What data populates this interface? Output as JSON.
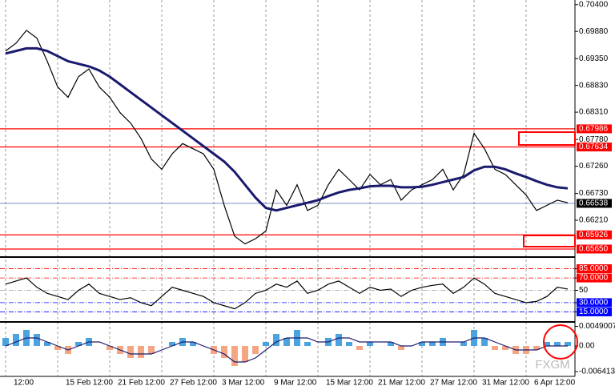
{
  "chart_data": [
    {
      "type": "line",
      "categories": [
        "12:00",
        null,
        null,
        null,
        null,
        "15 Feb 12:00",
        null,
        null,
        null,
        null,
        "21 Feb 12:00",
        null,
        null,
        null,
        null,
        "27 Feb 12:00",
        null,
        null,
        null,
        null,
        "3 Mar 12:00",
        null,
        null,
        null,
        null,
        "9 Mar 12:00",
        null,
        null,
        null,
        null,
        "15 Mar 12:00",
        null,
        null,
        null,
        null,
        "21 Mar 12:00",
        null,
        null,
        null,
        null,
        "27 Mar 12:00",
        null,
        null,
        null,
        null,
        "31 Mar 12:00",
        null,
        null,
        null,
        null,
        "6 Apr 12:00",
        null,
        null,
        null,
        null
      ],
      "series": [
        {
          "color": "#000000",
          "values": [
            0.695,
            0.6965,
            0.699,
            0.6975,
            0.693,
            0.688,
            0.686,
            0.69,
            0.6915,
            0.688,
            0.686,
            0.683,
            0.681,
            0.678,
            0.674,
            0.672,
            0.675,
            0.677,
            0.676,
            0.675,
            0.672,
            0.665,
            0.659,
            0.6575,
            0.6585,
            0.66,
            0.668,
            0.665,
            0.669,
            0.664,
            0.665,
            0.669,
            0.672,
            0.67,
            0.668,
            0.671,
            0.669,
            0.67,
            0.666,
            0.668,
            0.669,
            0.67,
            0.672,
            0.668,
            0.671,
            0.679,
            0.676,
            0.672,
            0.671,
            0.669,
            0.667,
            0.664,
            0.665,
            0.666,
            0.6655
          ]
        },
        {
          "color": "#1a1a6e",
          "values": [
            0.6945,
            0.695,
            0.6955,
            0.6955,
            0.695,
            0.694,
            0.693,
            0.6925,
            0.692,
            0.6912,
            0.69,
            0.6885,
            0.687,
            0.6855,
            0.684,
            0.6825,
            0.681,
            0.6795,
            0.678,
            0.6765,
            0.675,
            0.6735,
            0.6715,
            0.669,
            0.6665,
            0.6645,
            0.664,
            0.6645,
            0.665,
            0.6655,
            0.666,
            0.6668,
            0.6675,
            0.668,
            0.6683,
            0.6687,
            0.6688,
            0.6688,
            0.6685,
            0.6685,
            0.6686,
            0.669,
            0.6695,
            0.67,
            0.6705,
            0.6718,
            0.6725,
            0.6725,
            0.672,
            0.6712,
            0.6705,
            0.6697,
            0.669,
            0.6685,
            0.6683
          ]
        }
      ],
      "ylim": [
        0.6551,
        0.7049
      ],
      "yticks": [
        {
          "value": 0.704,
          "label": "0.70400"
        },
        {
          "value": 0.6988,
          "label": "0.69880"
        },
        {
          "value": 0.6935,
          "label": "0.69350"
        },
        {
          "value": 0.6883,
          "label": "0.68830"
        },
        {
          "value": 0.6831,
          "label": "0.68310"
        },
        {
          "value": 0.6778,
          "label": "0.67780"
        },
        {
          "value": 0.6726,
          "label": "0.67260"
        },
        {
          "value": 0.6673,
          "label": "0.66730"
        },
        {
          "value": 0.6621,
          "label": "0.66210"
        }
      ],
      "levels": [
        {
          "value": 0.67986,
          "label": "0.67986"
        },
        {
          "value": 0.67634,
          "label": "0.67634"
        },
        {
          "value": 0.65926,
          "label": "0.65926"
        },
        {
          "value": 0.6565,
          "label": "0.65650"
        }
      ],
      "level_color": "#ff0000",
      "current_price": {
        "value": 0.66538,
        "label": "0.66538"
      },
      "watermark": "FXGM"
    },
    {
      "type": "line",
      "series": [
        {
          "color": "#000000",
          "values": [
            60,
            65,
            70,
            55,
            45,
            40,
            35,
            50,
            60,
            45,
            40,
            35,
            38,
            30,
            25,
            40,
            55,
            50,
            45,
            40,
            30,
            25,
            20,
            30,
            45,
            50,
            60,
            55,
            65,
            45,
            50,
            60,
            65,
            55,
            45,
            55,
            50,
            52,
            40,
            50,
            55,
            58,
            60,
            45,
            55,
            70,
            60,
            45,
            40,
            35,
            30,
            32,
            40,
            55,
            52
          ]
        }
      ],
      "ylim": [
        0,
        100
      ],
      "yticks": [
        {
          "value": 85,
          "label": "85.0000"
        },
        {
          "value": 70,
          "label": "70.0000"
        },
        50,
        {
          "value": 30,
          "label": "30.0000"
        },
        {
          "value": 15,
          "label": "15.0000"
        }
      ],
      "level_colors": [
        "#ff0000",
        "#ff0000",
        "#999999",
        "#0000ff",
        "#0000ff"
      ]
    },
    {
      "type": "bar",
      "series": [
        {
          "color": "#4aa3df",
          "values": [
            0.002,
            0.003,
            0.004,
            0.003,
            0.001,
            -0.001,
            -0.002,
            0.001,
            0.002,
            0,
            -0.001,
            -0.002,
            -0.003,
            -0.003,
            -0.002,
            0,
            0.001,
            0.002,
            0.001,
            0,
            -0.002,
            -0.003,
            -0.005,
            -0.004,
            -0.002,
            0.001,
            0.003,
            0.002,
            0.004,
            0.001,
            0,
            0.002,
            0.003,
            0.001,
            -0.001,
            0.001,
            0,
            0.001,
            -0.001,
            0,
            0.001,
            0.001,
            0.002,
            0,
            0.001,
            0.004,
            0.002,
            -0.001,
            -0.001,
            -0.002,
            -0.002,
            -0.001,
            0.001,
            0.001,
            0.001
          ]
        },
        {
          "color": "#1a1a6e",
          "values": [
            0,
            0.001,
            0.002,
            0.002,
            0.001,
            0,
            -0.001,
            0,
            0.001,
            0.001,
            0,
            -0.001,
            -0.002,
            -0.002,
            -0.002,
            -0.001,
            0,
            0.001,
            0.001,
            0,
            -0.001,
            -0.002,
            -0.004,
            -0.004,
            -0.003,
            -0.001,
            0.001,
            0.002,
            0.002,
            0.002,
            0.001,
            0.001,
            0.002,
            0.002,
            0.001,
            0.001,
            0.001,
            0.001,
            0,
            0,
            0.001,
            0.001,
            0.001,
            0.001,
            0.001,
            0.002,
            0.002,
            0.001,
            0,
            -0.001,
            -0.001,
            -0.001,
            0,
            0,
            0
          ]
        }
      ],
      "negative_color": "#f4a582",
      "ylim": [
        -0.0072,
        0.0056
      ],
      "yticks": [
        {
          "value": 0.0049007,
          "label": "0.0049007"
        },
        {
          "value": 0,
          "label": "0.00"
        },
        {
          "value": -0.0064134,
          "label": "-0.0064134"
        }
      ]
    }
  ]
}
